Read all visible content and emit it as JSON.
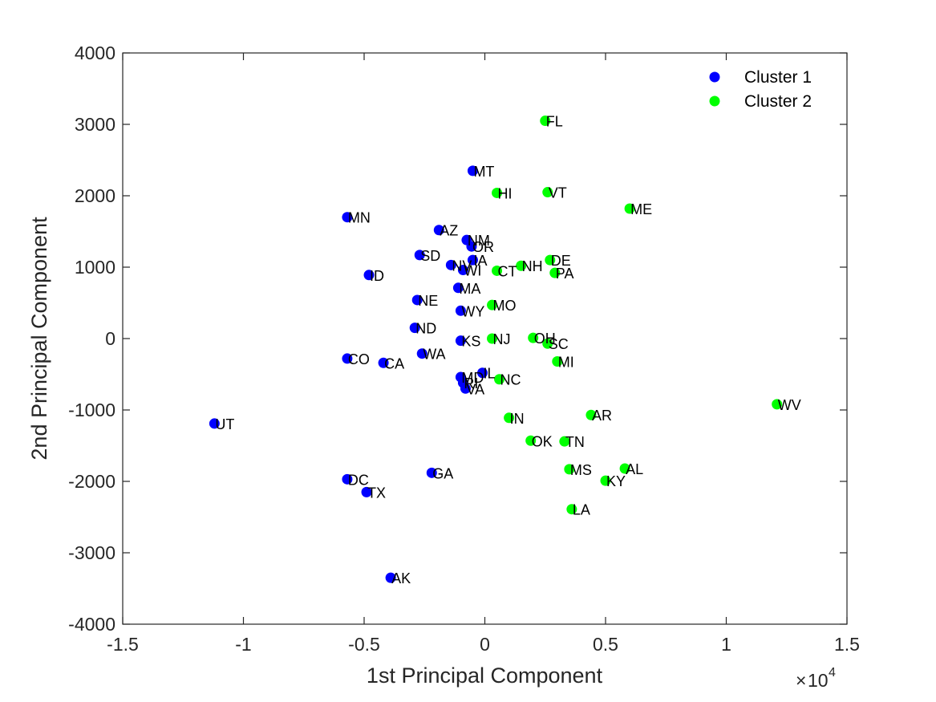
{
  "chart_data": {
    "type": "scatter",
    "xlabel": "1st Principal Component",
    "ylabel": "2nd Principal Component",
    "x_multiplier": {
      "times": "×",
      "base": "10",
      "exponent": "4"
    },
    "xlim": [
      -15000,
      15000
    ],
    "ylim": [
      -4000,
      4000
    ],
    "x_ticks": [
      -15000,
      -10000,
      -5000,
      0,
      5000,
      10000,
      15000
    ],
    "x_tick_labels": [
      "-1.5",
      "-1",
      "-0.5",
      "0",
      "0.5",
      "1",
      "1.5"
    ],
    "y_ticks": [
      -4000,
      -3000,
      -2000,
      -1000,
      0,
      1000,
      2000,
      3000,
      4000
    ],
    "y_tick_labels": [
      "-4000",
      "-3000",
      "-2000",
      "-1000",
      "0",
      "1000",
      "2000",
      "3000",
      "4000"
    ],
    "grid": false,
    "legend_position": "top-right",
    "series": [
      {
        "name": "Cluster 1",
        "color": "#0000ff",
        "points": [
          {
            "label": "MT",
            "x": -500,
            "y": 2350
          },
          {
            "label": "MN",
            "x": -5700,
            "y": 1700
          },
          {
            "label": "AZ",
            "x": -1900,
            "y": 1520
          },
          {
            "label": "NM",
            "x": -750,
            "y": 1380
          },
          {
            "label": "OR",
            "x": -550,
            "y": 1290
          },
          {
            "label": "SD",
            "x": -2700,
            "y": 1170
          },
          {
            "label": "IA",
            "x": -500,
            "y": 1100
          },
          {
            "label": "NV",
            "x": -1400,
            "y": 1030
          },
          {
            "label": "WI",
            "x": -900,
            "y": 960
          },
          {
            "label": "ID",
            "x": -4800,
            "y": 890
          },
          {
            "label": "MA",
            "x": -1100,
            "y": 710
          },
          {
            "label": "NE",
            "x": -2800,
            "y": 540
          },
          {
            "label": "WY",
            "x": -1000,
            "y": 390
          },
          {
            "label": "ND",
            "x": -2900,
            "y": 150
          },
          {
            "label": "KS",
            "x": -1000,
            "y": -30
          },
          {
            "label": "WA",
            "x": -2600,
            "y": -210
          },
          {
            "label": "CO",
            "x": -5700,
            "y": -280
          },
          {
            "label": "CA",
            "x": -4200,
            "y": -340
          },
          {
            "label": "IL",
            "x": -100,
            "y": -480
          },
          {
            "label": "MD",
            "x": -1000,
            "y": -540
          },
          {
            "label": "RI",
            "x": -900,
            "y": -620
          },
          {
            "label": "VA",
            "x": -800,
            "y": -700
          },
          {
            "label": "UT",
            "x": -11200,
            "y": -1190
          },
          {
            "label": "GA",
            "x": -2200,
            "y": -1880
          },
          {
            "label": "DC",
            "x": -5700,
            "y": -1970
          },
          {
            "label": "TX",
            "x": -4900,
            "y": -2150
          },
          {
            "label": "AK",
            "x": -3900,
            "y": -3350
          }
        ]
      },
      {
        "name": "Cluster 2",
        "color": "#00ff00",
        "points": [
          {
            "label": "FL",
            "x": 2500,
            "y": 3050
          },
          {
            "label": "HI",
            "x": 500,
            "y": 2040
          },
          {
            "label": "VT",
            "x": 2600,
            "y": 2050
          },
          {
            "label": "ME",
            "x": 6000,
            "y": 1820
          },
          {
            "label": "DE",
            "x": 2700,
            "y": 1100
          },
          {
            "label": "NH",
            "x": 1500,
            "y": 1020
          },
          {
            "label": "CT",
            "x": 500,
            "y": 950
          },
          {
            "label": "PA",
            "x": 2900,
            "y": 920
          },
          {
            "label": "MO",
            "x": 300,
            "y": 470
          },
          {
            "label": "OH",
            "x": 2000,
            "y": 10
          },
          {
            "label": "NJ",
            "x": 300,
            "y": 0
          },
          {
            "label": "SC",
            "x": 2600,
            "y": -70
          },
          {
            "label": "MI",
            "x": 3000,
            "y": -320
          },
          {
            "label": "NC",
            "x": 600,
            "y": -570
          },
          {
            "label": "WV",
            "x": 12100,
            "y": -920
          },
          {
            "label": "IN",
            "x": 1000,
            "y": -1110
          },
          {
            "label": "AR",
            "x": 4400,
            "y": -1070
          },
          {
            "label": "OK",
            "x": 1900,
            "y": -1430
          },
          {
            "label": "TN",
            "x": 3300,
            "y": -1440
          },
          {
            "label": "MS",
            "x": 3500,
            "y": -1830
          },
          {
            "label": "AL",
            "x": 5800,
            "y": -1820
          },
          {
            "label": "KY",
            "x": 5000,
            "y": -1990
          },
          {
            "label": "LA",
            "x": 3600,
            "y": -2390
          }
        ]
      }
    ]
  }
}
